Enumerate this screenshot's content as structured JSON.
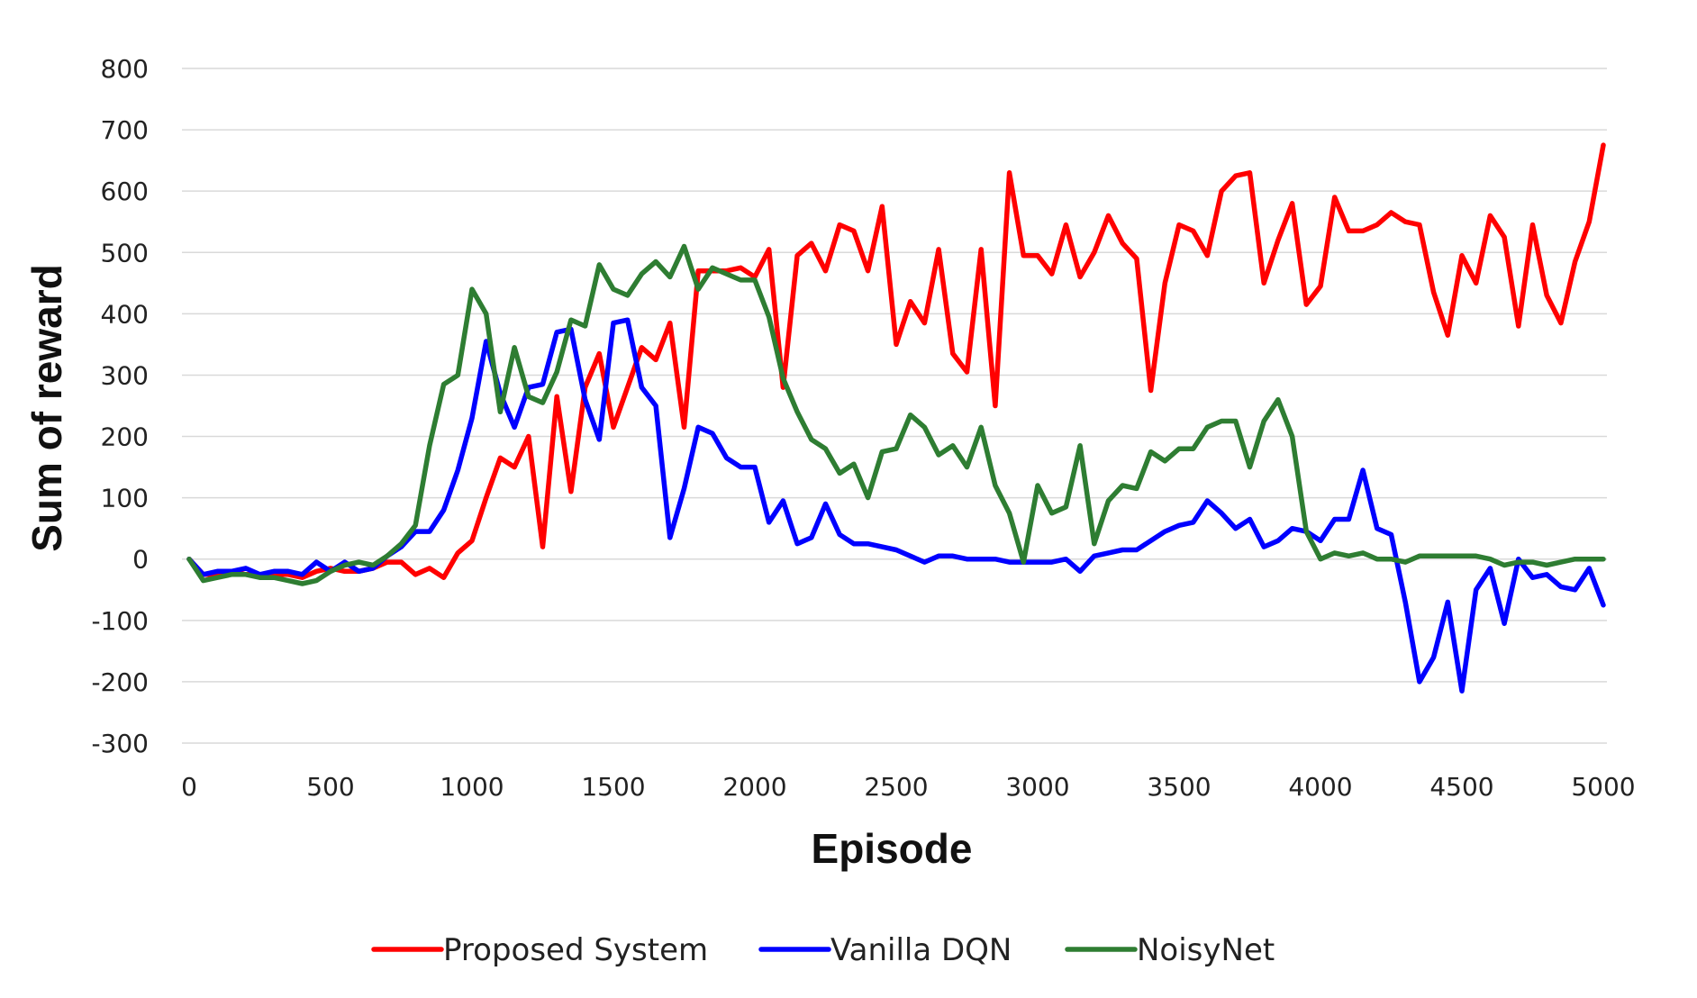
{
  "chart_data": {
    "type": "line",
    "title": "",
    "xlabel": "Episode",
    "ylabel": "Sum of reward",
    "xlim": [
      0,
      5000
    ],
    "ylim": [
      -300,
      800
    ],
    "xticks": [
      0,
      500,
      1000,
      1500,
      2000,
      2500,
      3000,
      3500,
      4000,
      4500,
      5000
    ],
    "yticks": [
      -300,
      -200,
      -100,
      0,
      100,
      200,
      300,
      400,
      500,
      600,
      700,
      800
    ],
    "grid": "horizontal",
    "legend": "bottom",
    "x": [
      0,
      50,
      100,
      150,
      200,
      250,
      300,
      350,
      400,
      450,
      500,
      550,
      600,
      650,
      700,
      750,
      800,
      850,
      900,
      950,
      1000,
      1050,
      1100,
      1150,
      1200,
      1250,
      1300,
      1350,
      1400,
      1450,
      1500,
      1550,
      1600,
      1650,
      1700,
      1750,
      1800,
      1850,
      1900,
      1950,
      2000,
      2050,
      2100,
      2150,
      2200,
      2250,
      2300,
      2350,
      2400,
      2450,
      2500,
      2550,
      2600,
      2650,
      2700,
      2750,
      2800,
      2850,
      2900,
      2950,
      3000,
      3050,
      3100,
      3150,
      3200,
      3250,
      3300,
      3350,
      3400,
      3450,
      3500,
      3550,
      3600,
      3650,
      3700,
      3750,
      3800,
      3850,
      3900,
      3950,
      4000,
      4050,
      4100,
      4150,
      4200,
      4250,
      4300,
      4350,
      4400,
      4450,
      4500,
      4550,
      4600,
      4650,
      4700,
      4750,
      4800,
      4850,
      4900,
      4950,
      5000
    ],
    "series": [
      {
        "name": "Proposed System",
        "color": "#ff0000",
        "values": [
          0,
          -25,
          -25,
          -20,
          -25,
          -25,
          -25,
          -25,
          -30,
          -20,
          -15,
          -20,
          -20,
          -15,
          -5,
          -5,
          -25,
          -15,
          -30,
          10,
          30,
          100,
          165,
          150,
          200,
          20,
          265,
          110,
          280,
          335,
          215,
          280,
          345,
          325,
          385,
          215,
          470,
          470,
          470,
          475,
          460,
          505,
          280,
          495,
          515,
          470,
          545,
          535,
          470,
          575,
          350,
          420,
          385,
          505,
          335,
          305,
          505,
          250,
          630,
          495,
          495,
          465,
          545,
          460,
          500,
          560,
          515,
          490,
          275,
          450,
          545,
          535,
          495,
          600,
          625,
          630,
          450,
          520,
          580,
          415,
          445,
          590,
          535,
          535,
          545,
          565,
          550,
          545,
          435,
          365,
          495,
          450,
          560,
          525,
          380,
          545,
          430,
          385,
          485,
          550,
          675
        ]
      },
      {
        "name": "Vanilla DQN",
        "color": "#0000ff",
        "values": [
          0,
          -25,
          -20,
          -20,
          -15,
          -25,
          -20,
          -20,
          -25,
          -5,
          -20,
          -5,
          -20,
          -15,
          5,
          20,
          45,
          45,
          80,
          145,
          230,
          355,
          270,
          215,
          280,
          285,
          370,
          375,
          260,
          195,
          385,
          390,
          280,
          250,
          35,
          115,
          215,
          205,
          165,
          150,
          150,
          60,
          95,
          25,
          35,
          90,
          40,
          25,
          25,
          20,
          15,
          5,
          -5,
          5,
          5,
          0,
          0,
          0,
          -5,
          -5,
          -5,
          -5,
          0,
          -20,
          5,
          10,
          15,
          15,
          30,
          45,
          55,
          60,
          95,
          75,
          50,
          65,
          20,
          30,
          50,
          45,
          30,
          65,
          65,
          145,
          50,
          40,
          -70,
          -200,
          -160,
          -70,
          -215,
          -50,
          -15,
          -105,
          0,
          -30,
          -25,
          -45,
          -50,
          -15,
          -75
        ]
      },
      {
        "name": "NoisyNet",
        "color": "#2e7d32",
        "values": [
          0,
          -35,
          -30,
          -25,
          -25,
          -30,
          -30,
          -35,
          -40,
          -35,
          -20,
          -10,
          -5,
          -10,
          5,
          25,
          55,
          185,
          285,
          300,
          440,
          400,
          240,
          345,
          265,
          255,
          305,
          390,
          380,
          480,
          440,
          430,
          465,
          485,
          460,
          510,
          440,
          475,
          465,
          455,
          455,
          395,
          295,
          240,
          195,
          180,
          140,
          155,
          100,
          175,
          180,
          235,
          215,
          170,
          185,
          150,
          215,
          120,
          75,
          -5,
          120,
          75,
          85,
          185,
          25,
          95,
          120,
          115,
          175,
          160,
          180,
          180,
          215,
          225,
          225,
          150,
          225,
          260,
          200,
          45,
          0,
          10,
          5,
          10,
          0,
          0,
          -5,
          5,
          5,
          5,
          5,
          5,
          0,
          -10,
          -5,
          -5,
          -10,
          -5,
          0,
          0,
          0
        ]
      }
    ]
  }
}
